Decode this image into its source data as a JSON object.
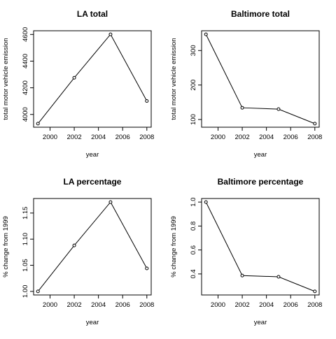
{
  "chart_data": [
    {
      "type": "line",
      "title": "LA total",
      "xlabel": "year",
      "ylabel": "total motor vehicle emission",
      "x": [
        1999,
        2002,
        2005,
        2008
      ],
      "y": [
        3931,
        4275,
        4601,
        4101
      ],
      "xlim": [
        1999,
        2008
      ],
      "ylim": [
        3931,
        4601
      ],
      "xticks": [
        2000,
        2002,
        2004,
        2006,
        2008
      ],
      "yticks": [
        4000,
        4200,
        4400,
        4600
      ],
      "grid": false
    },
    {
      "type": "line",
      "title": "Baltimore total",
      "xlabel": "year",
      "ylabel": "total motor vehicle emission",
      "x": [
        1999,
        2002,
        2005,
        2008
      ],
      "y": [
        347,
        134,
        130,
        88
      ],
      "xlim": [
        1999,
        2008
      ],
      "ylim": [
        88,
        347
      ],
      "xticks": [
        2000,
        2002,
        2004,
        2006,
        2008
      ],
      "yticks": [
        100,
        200,
        300
      ],
      "grid": false
    },
    {
      "type": "line",
      "title": "LA percentage",
      "xlabel": "year",
      "ylabel": "% change from 1999",
      "x": [
        1999,
        2002,
        2005,
        2008
      ],
      "y": [
        1.0,
        1.088,
        1.171,
        1.044
      ],
      "xlim": [
        1999,
        2008
      ],
      "ylim": [
        1.0,
        1.171
      ],
      "xticks": [
        2000,
        2002,
        2004,
        2006,
        2008
      ],
      "yticks": [
        1.0,
        1.05,
        1.1,
        1.15
      ],
      "ytick_labels": [
        "1.00",
        "1.05",
        "1.10",
        "1.15"
      ],
      "grid": false
    },
    {
      "type": "line",
      "title": "Baltimore percentage",
      "xlabel": "year",
      "ylabel": "% change from 1999",
      "x": [
        1999,
        2002,
        2005,
        2008
      ],
      "y": [
        1.0,
        0.386,
        0.376,
        0.254
      ],
      "xlim": [
        1999,
        2008
      ],
      "ylim": [
        0.254,
        1.0
      ],
      "xticks": [
        2000,
        2002,
        2004,
        2006,
        2008
      ],
      "yticks": [
        0.4,
        0.6,
        0.8,
        1.0
      ],
      "ytick_labels": [
        "0.4",
        "0.6",
        "0.8",
        "1.0"
      ],
      "grid": false
    }
  ]
}
